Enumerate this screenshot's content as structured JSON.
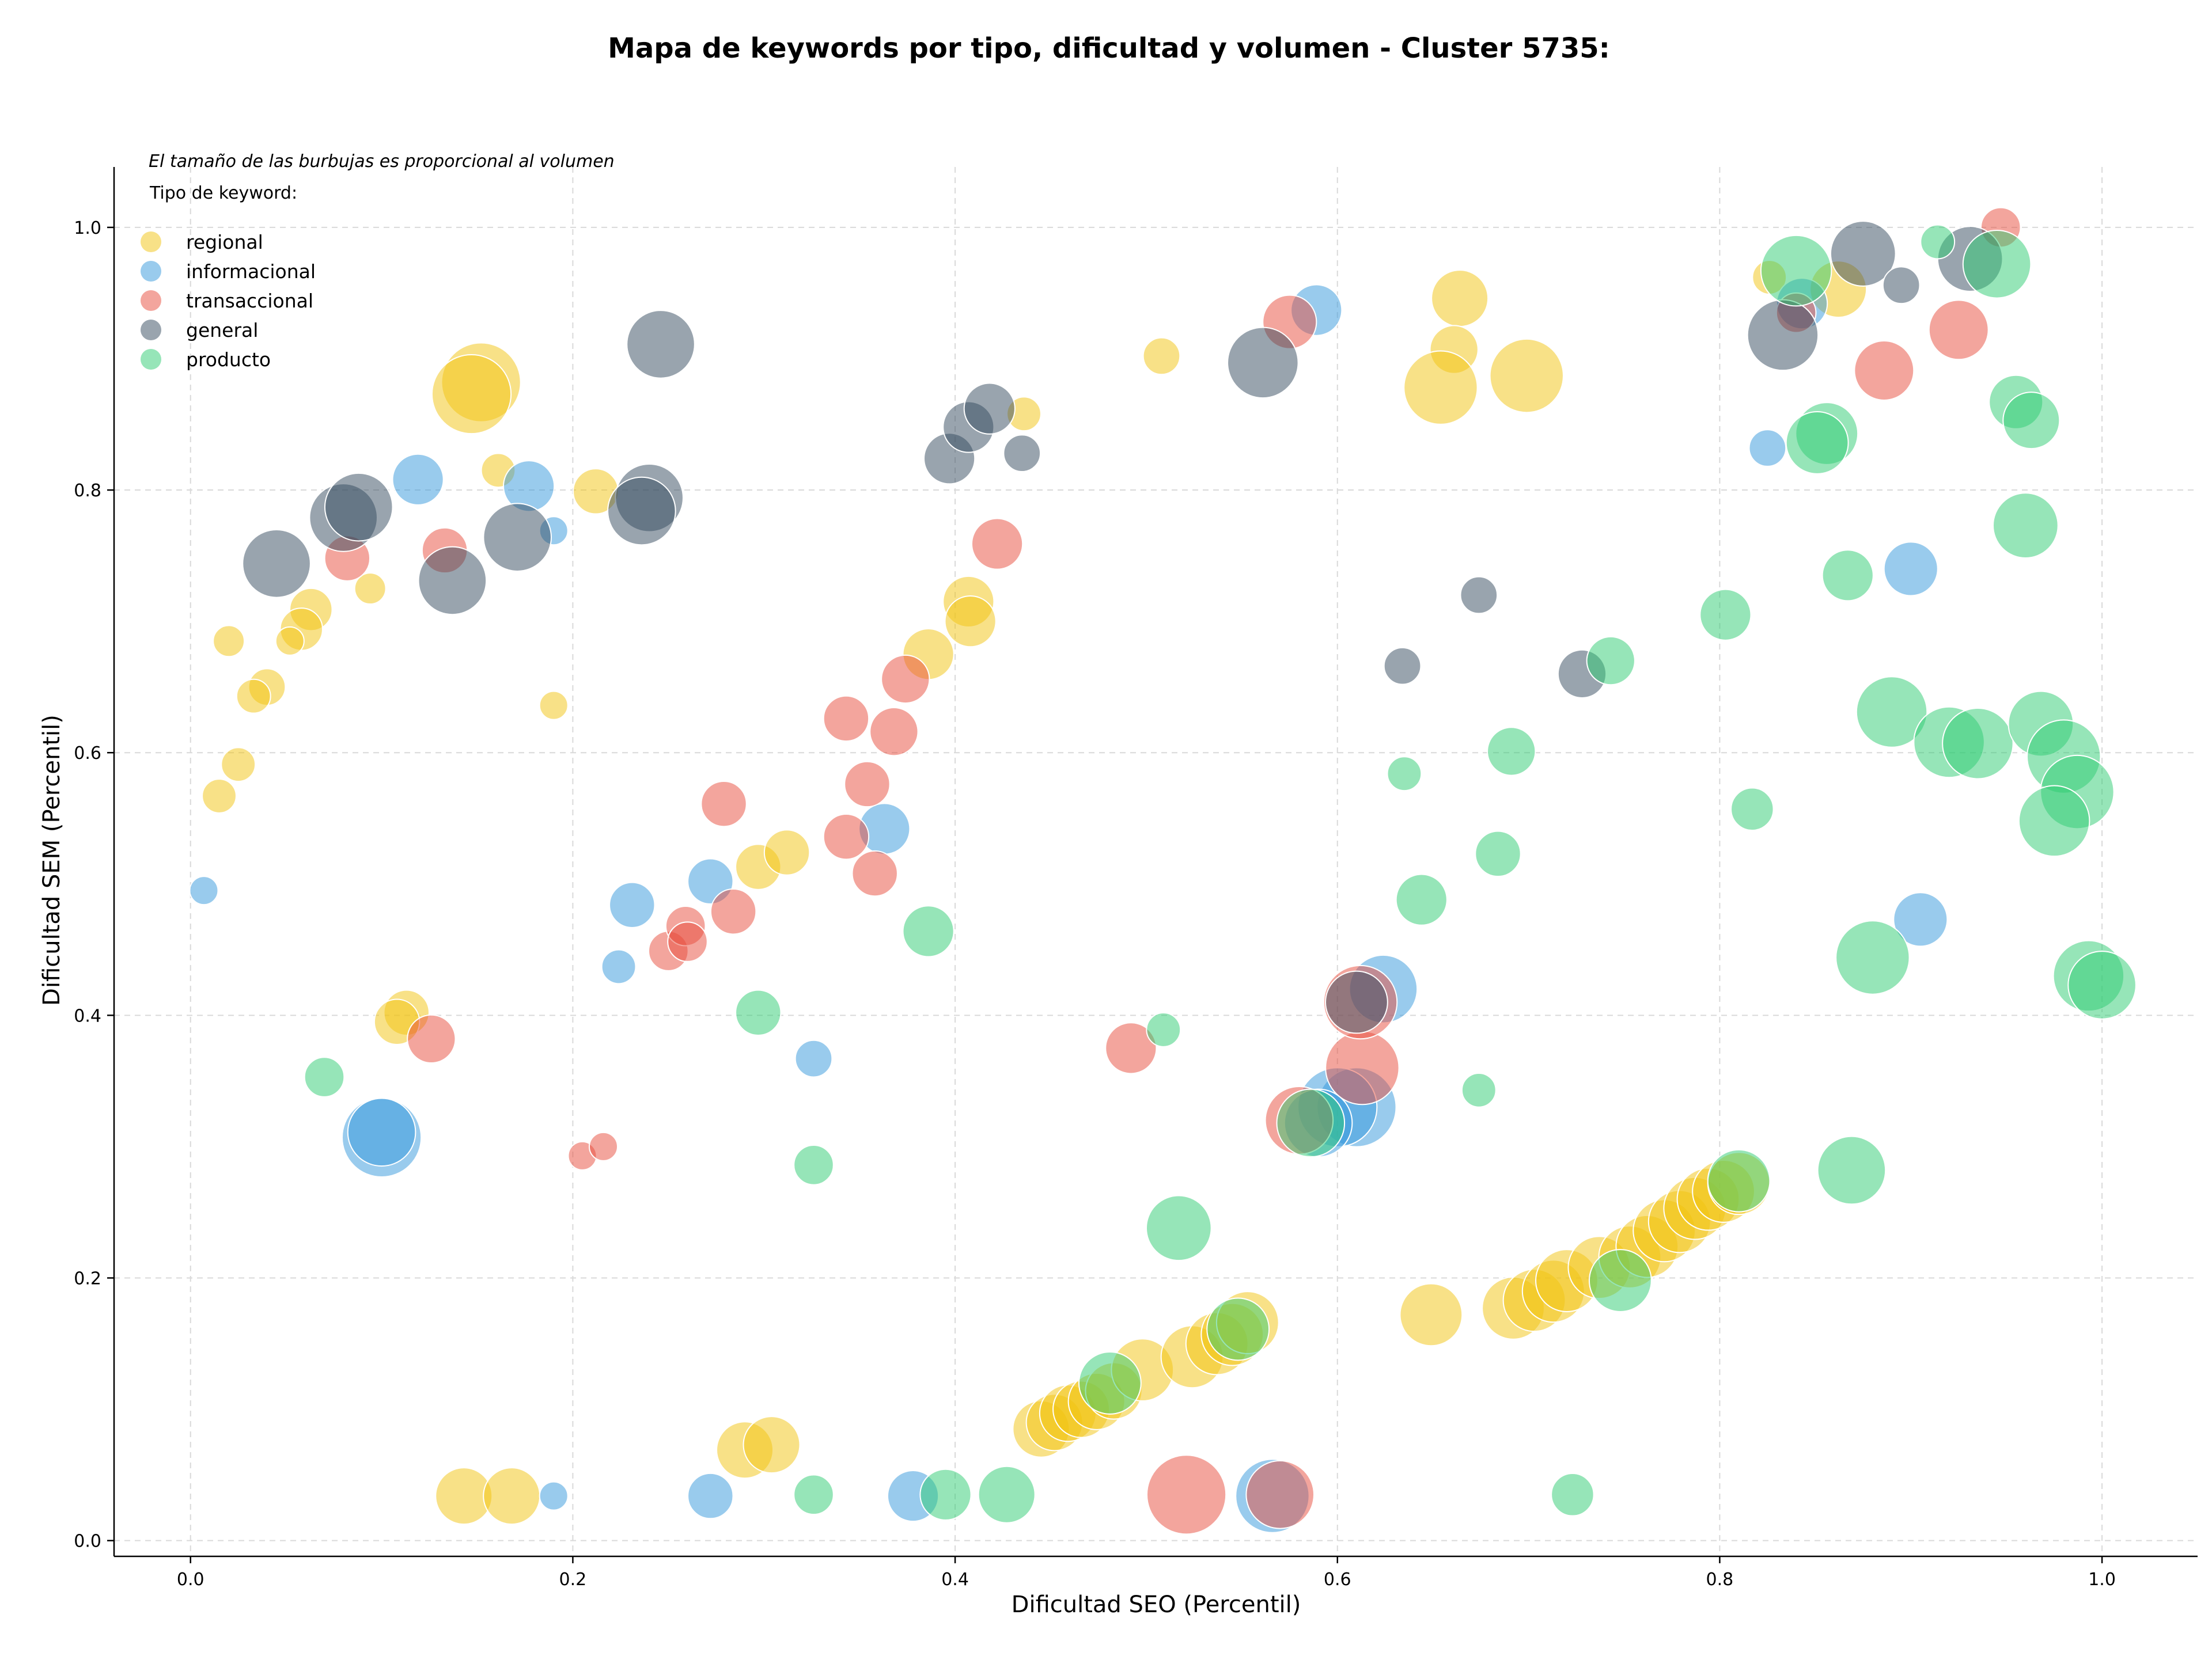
{
  "chart_data": {
    "type": "scatter",
    "title": "Mapa de keywords por tipo, dificultad y volumen - Cluster 5735:",
    "xlabel": "Dificultad SEO (Percentil)",
    "ylabel": "Dificultad SEM (Percentil)",
    "annotation": "El tamaño de las burbujas es proporcional al volumen",
    "legend_title": "Tipo de keyword:",
    "legend_position": "top-left",
    "grid": true,
    "xlim": [
      -0.04,
      1.05
    ],
    "ylim": [
      -0.012,
      1.046
    ],
    "x_ticks": [
      "0.0",
      "0.2",
      "0.4",
      "0.6",
      "0.8",
      "1.0"
    ],
    "y_ticks": [
      "0.0",
      "0.2",
      "0.4",
      "0.6",
      "0.8",
      "1.0"
    ],
    "series": [
      {
        "name": "regional",
        "color": "#f1c40f",
        "points": [
          [
            0.152,
            0.882,
            28
          ],
          [
            0.147,
            0.873,
            28
          ],
          [
            0.161,
            0.815,
            12
          ],
          [
            0.212,
            0.799,
            16
          ],
          [
            0.063,
            0.709,
            15
          ],
          [
            0.058,
            0.694,
            15
          ],
          [
            0.094,
            0.725,
            11
          ],
          [
            0.02,
            0.685,
            11
          ],
          [
            0.052,
            0.685,
            10
          ],
          [
            0.04,
            0.65,
            13
          ],
          [
            0.033,
            0.643,
            12
          ],
          [
            0.025,
            0.591,
            12
          ],
          [
            0.015,
            0.567,
            12
          ],
          [
            0.19,
            0.636,
            10
          ],
          [
            0.113,
            0.402,
            16
          ],
          [
            0.108,
            0.395,
            16
          ],
          [
            0.143,
            0.034,
            20
          ],
          [
            0.168,
            0.034,
            20
          ],
          [
            0.29,
            0.069,
            20
          ],
          [
            0.304,
            0.073,
            20
          ],
          [
            0.297,
            0.513,
            16
          ],
          [
            0.312,
            0.524,
            16
          ],
          [
            0.386,
            0.675,
            18
          ],
          [
            0.407,
            0.715,
            18
          ],
          [
            0.408,
            0.7,
            18
          ],
          [
            0.436,
            0.858,
            12
          ],
          [
            0.508,
            0.902,
            13
          ],
          [
            0.664,
            0.946,
            20
          ],
          [
            0.661,
            0.907,
            17
          ],
          [
            0.654,
            0.878,
            26
          ],
          [
            0.699,
            0.887,
            26
          ],
          [
            0.649,
            0.172,
            22
          ],
          [
            0.692,
            0.177,
            22
          ],
          [
            0.703,
            0.183,
            22
          ],
          [
            0.713,
            0.19,
            22
          ],
          [
            0.72,
            0.198,
            22
          ],
          [
            0.737,
            0.208,
            22
          ],
          [
            0.753,
            0.216,
            22
          ],
          [
            0.762,
            0.224,
            22
          ],
          [
            0.771,
            0.236,
            22
          ],
          [
            0.779,
            0.243,
            22
          ],
          [
            0.787,
            0.253,
            22
          ],
          [
            0.794,
            0.26,
            22
          ],
          [
            0.802,
            0.266,
            22
          ],
          [
            0.81,
            0.272,
            22
          ],
          [
            0.445,
            0.085,
            20
          ],
          [
            0.452,
            0.09,
            20
          ],
          [
            0.459,
            0.097,
            20
          ],
          [
            0.466,
            0.1,
            20
          ],
          [
            0.474,
            0.106,
            20
          ],
          [
            0.483,
            0.114,
            20
          ],
          [
            0.498,
            0.13,
            22
          ],
          [
            0.524,
            0.14,
            22
          ],
          [
            0.537,
            0.15,
            22
          ],
          [
            0.545,
            0.157,
            22
          ],
          [
            0.553,
            0.166,
            22
          ],
          [
            0.826,
            0.962,
            12
          ],
          [
            0.862,
            0.953,
            20
          ]
        ]
      },
      {
        "name": "informacional",
        "color": "#3498db",
        "points": [
          [
            0.119,
            0.808,
            18
          ],
          [
            0.177,
            0.803,
            18
          ],
          [
            0.19,
            0.769,
            10
          ],
          [
            0.007,
            0.495,
            10
          ],
          [
            0.1,
            0.307,
            28
          ],
          [
            0.1,
            0.311,
            24
          ],
          [
            0.19,
            0.034,
            10
          ],
          [
            0.231,
            0.484,
            16
          ],
          [
            0.224,
            0.437,
            12
          ],
          [
            0.272,
            0.502,
            16
          ],
          [
            0.363,
            0.542,
            18
          ],
          [
            0.326,
            0.367,
            13
          ],
          [
            0.272,
            0.034,
            16
          ],
          [
            0.378,
            0.034,
            18
          ],
          [
            0.589,
            0.937,
            18
          ],
          [
            0.624,
            0.42,
            24
          ],
          [
            0.61,
            0.33,
            28
          ],
          [
            0.6,
            0.33,
            28
          ],
          [
            0.59,
            0.318,
            24
          ],
          [
            0.566,
            0.034,
            26
          ],
          [
            0.825,
            0.832,
            13
          ],
          [
            0.843,
            0.942,
            18
          ],
          [
            0.9,
            0.74,
            19
          ],
          [
            0.905,
            0.473,
            19
          ]
        ]
      },
      {
        "name": "transaccional",
        "color": "#e74c3c",
        "points": [
          [
            0.133,
            0.754,
            16
          ],
          [
            0.082,
            0.748,
            16
          ],
          [
            0.126,
            0.382,
            17
          ],
          [
            0.205,
            0.293,
            10
          ],
          [
            0.216,
            0.3,
            10
          ],
          [
            0.279,
            0.561,
            16
          ],
          [
            0.284,
            0.479,
            16
          ],
          [
            0.25,
            0.449,
            14
          ],
          [
            0.259,
            0.468,
            14
          ],
          [
            0.26,
            0.456,
            14
          ],
          [
            0.343,
            0.626,
            16
          ],
          [
            0.354,
            0.576,
            16
          ],
          [
            0.343,
            0.536,
            16
          ],
          [
            0.358,
            0.508,
            16
          ],
          [
            0.368,
            0.616,
            17
          ],
          [
            0.374,
            0.656,
            17
          ],
          [
            0.422,
            0.759,
            18
          ],
          [
            0.492,
            0.375,
            18
          ],
          [
            0.521,
            0.035,
            28
          ],
          [
            0.57,
            0.035,
            24
          ],
          [
            0.575,
            0.928,
            19
          ],
          [
            0.58,
            0.32,
            24
          ],
          [
            0.613,
            0.36,
            26
          ],
          [
            0.612,
            0.41,
            26
          ],
          [
            0.84,
            0.935,
            14
          ],
          [
            0.886,
            0.891,
            21
          ],
          [
            0.925,
            0.922,
            21
          ],
          [
            0.947,
            1.0,
            14
          ]
        ]
      },
      {
        "name": "general",
        "color": "#34495e",
        "points": [
          [
            0.045,
            0.744,
            24
          ],
          [
            0.08,
            0.779,
            24
          ],
          [
            0.088,
            0.787,
            24
          ],
          [
            0.137,
            0.731,
            24
          ],
          [
            0.171,
            0.764,
            24
          ],
          [
            0.246,
            0.911,
            24
          ],
          [
            0.24,
            0.794,
            24
          ],
          [
            0.236,
            0.784,
            24
          ],
          [
            0.397,
            0.824,
            18
          ],
          [
            0.407,
            0.848,
            18
          ],
          [
            0.418,
            0.862,
            18
          ],
          [
            0.435,
            0.828,
            13
          ],
          [
            0.561,
            0.897,
            25
          ],
          [
            0.634,
            0.666,
            13
          ],
          [
            0.674,
            0.72,
            13
          ],
          [
            0.728,
            0.66,
            17
          ],
          [
            0.833,
            0.918,
            25
          ],
          [
            0.875,
            0.98,
            23
          ],
          [
            0.895,
            0.956,
            13
          ],
          [
            0.931,
            0.976,
            23
          ],
          [
            0.61,
            0.41,
            22
          ]
        ]
      },
      {
        "name": "producto",
        "color": "#2ecc71",
        "points": [
          [
            0.07,
            0.353,
            14
          ],
          [
            0.297,
            0.402,
            16
          ],
          [
            0.326,
            0.286,
            14
          ],
          [
            0.326,
            0.035,
            14
          ],
          [
            0.386,
            0.464,
            18
          ],
          [
            0.395,
            0.035,
            18
          ],
          [
            0.427,
            0.035,
            20
          ],
          [
            0.481,
            0.12,
            22
          ],
          [
            0.509,
            0.389,
            12
          ],
          [
            0.517,
            0.238,
            23
          ],
          [
            0.548,
            0.161,
            22
          ],
          [
            0.586,
            0.318,
            24
          ],
          [
            0.635,
            0.584,
            12
          ],
          [
            0.644,
            0.488,
            18
          ],
          [
            0.674,
            0.343,
            12
          ],
          [
            0.684,
            0.523,
            16
          ],
          [
            0.691,
            0.601,
            17
          ],
          [
            0.743,
            0.67,
            17
          ],
          [
            0.748,
            0.198,
            22
          ],
          [
            0.723,
            0.035,
            15
          ],
          [
            0.803,
            0.705,
            18
          ],
          [
            0.817,
            0.557,
            15
          ],
          [
            0.81,
            0.274,
            22
          ],
          [
            0.84,
            0.967,
            25
          ],
          [
            0.856,
            0.843,
            22
          ],
          [
            0.851,
            0.836,
            22
          ],
          [
            0.867,
            0.735,
            18
          ],
          [
            0.88,
            0.444,
            26
          ],
          [
            0.869,
            0.282,
            24
          ],
          [
            0.89,
            0.631,
            25
          ],
          [
            0.914,
            0.989,
            12
          ],
          [
            0.92,
            0.608,
            25
          ],
          [
            0.935,
            0.607,
            25
          ],
          [
            0.945,
            0.972,
            24
          ],
          [
            0.955,
            0.867,
            19
          ],
          [
            0.963,
            0.853,
            20
          ],
          [
            0.96,
            0.773,
            23
          ],
          [
            0.968,
            0.622,
            23
          ],
          [
            0.98,
            0.597,
            26
          ],
          [
            0.987,
            0.57,
            26
          ],
          [
            0.975,
            0.548,
            25
          ],
          [
            0.993,
            0.43,
            25
          ],
          [
            1.0,
            0.423,
            24
          ]
        ]
      }
    ]
  }
}
